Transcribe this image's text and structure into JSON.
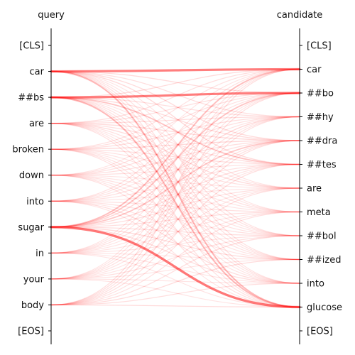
{
  "chart_data": {
    "type": "attention-alignment",
    "left_title": "query",
    "right_title": "candidate",
    "query_tokens": [
      "[CLS]",
      "car",
      "##bs",
      "are",
      "broken",
      "down",
      "into",
      "sugar",
      "in",
      "your",
      "body",
      "[EOS]"
    ],
    "candidate_tokens": [
      "[CLS]",
      "car",
      "##bo",
      "##hy",
      "##dra",
      "##tes",
      "are",
      "meta",
      "##bol",
      "##ized",
      "into",
      "glucose",
      "[EOS]"
    ],
    "line_color": "#ff0000",
    "weights": [
      [
        0,
        0,
        0,
        0,
        0,
        0,
        0,
        0,
        0,
        0,
        0,
        0,
        0
      ],
      [
        0,
        0.85,
        0.12,
        0.1,
        0.12,
        0.14,
        0.06,
        0.06,
        0.08,
        0.08,
        0.08,
        0.4,
        0
      ],
      [
        0,
        0.12,
        0.85,
        0.1,
        0.12,
        0.3,
        0.06,
        0.06,
        0.08,
        0.08,
        0.08,
        0.4,
        0
      ],
      [
        0,
        0.1,
        0.1,
        0.1,
        0.12,
        0.1,
        0.12,
        0.08,
        0.06,
        0.06,
        0.06,
        0.08,
        0
      ],
      [
        0,
        0.08,
        0.1,
        0.1,
        0.14,
        0.1,
        0.08,
        0.06,
        0.06,
        0.08,
        0.06,
        0.08,
        0
      ],
      [
        0,
        0.06,
        0.08,
        0.08,
        0.1,
        0.08,
        0.06,
        0.06,
        0.08,
        0.06,
        0.06,
        0.08,
        0
      ],
      [
        0,
        0.08,
        0.08,
        0.06,
        0.1,
        0.08,
        0.06,
        0.08,
        0.08,
        0.06,
        0.12,
        0.06,
        0
      ],
      [
        0,
        0.35,
        0.3,
        0.15,
        0.28,
        0.12,
        0.1,
        0.1,
        0.1,
        0.12,
        0.1,
        0.9,
        0
      ],
      [
        0,
        0.06,
        0.06,
        0.06,
        0.08,
        0.06,
        0.06,
        0.06,
        0.06,
        0.06,
        0.06,
        0.06,
        0
      ],
      [
        0,
        0.06,
        0.06,
        0.08,
        0.08,
        0.06,
        0.06,
        0.06,
        0.08,
        0.06,
        0.06,
        0.06,
        0
      ],
      [
        0,
        0.1,
        0.1,
        0.08,
        0.1,
        0.1,
        0.08,
        0.08,
        0.1,
        0.12,
        0.1,
        0.12,
        0
      ],
      [
        0,
        0,
        0,
        0,
        0,
        0,
        0,
        0,
        0,
        0,
        0,
        0,
        0
      ]
    ]
  }
}
